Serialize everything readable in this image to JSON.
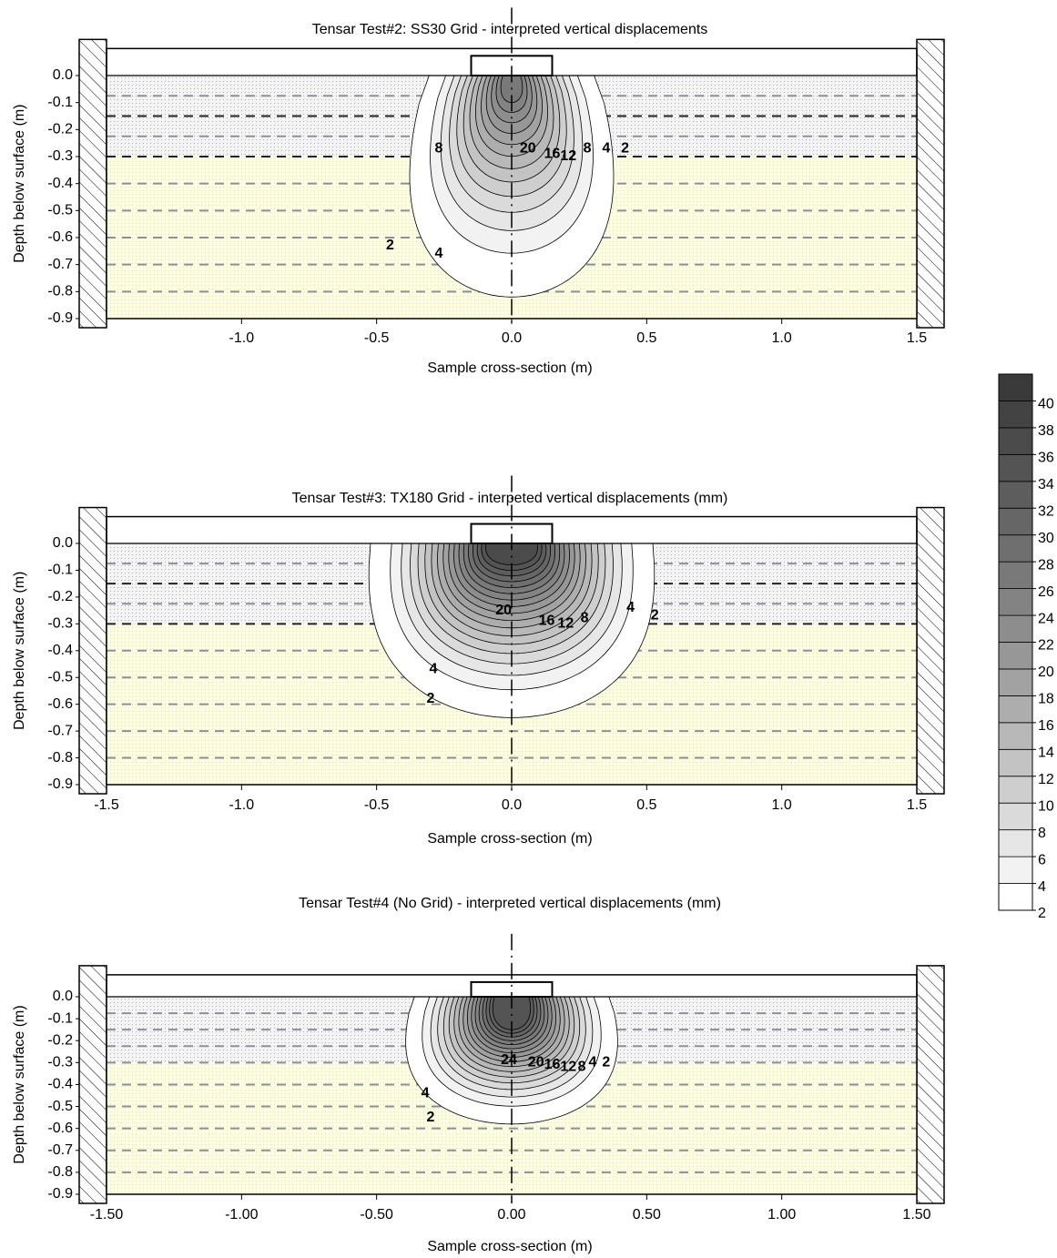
{
  "chart_data": [
    {
      "type": "contour",
      "title": "Tensar Test#2: SS30 Grid - interpreted vertical displacements",
      "xlabel": "Sample cross-section (m)",
      "ylabel": "Depth below surface (m)",
      "xlim": [
        -1.5,
        1.5
      ],
      "ylim": [
        -0.9,
        0.1
      ],
      "xticks": [
        {
          "value": -1,
          "label": "-1.0"
        },
        -0.5,
        {
          "value": 0,
          "label": "0.0"
        },
        0.5,
        {
          "value": 1,
          "label": "1.0"
        },
        1.5
      ],
      "yticks": [
        {
          "value": 0,
          "label": "0.0"
        },
        -0.1,
        -0.2,
        -0.3,
        -0.4,
        -0.5,
        -0.6,
        -0.7,
        -0.8,
        -0.9
      ],
      "contour_levels": [
        2,
        4,
        6,
        8,
        10,
        12,
        14,
        16,
        18,
        20,
        22,
        24,
        26
      ],
      "contour_labels": [
        8,
        20,
        16,
        12,
        8,
        4,
        2,
        2,
        4
      ]
    },
    {
      "type": "contour",
      "title": "Tensar Test#3: TX180 Grid - interpeted vertical displacements (mm)",
      "xlabel": "Sample cross-section (m)",
      "ylabel": "Depth below surface (m)",
      "xlim": [
        -1.5,
        1.5
      ],
      "ylim": [
        -0.9,
        0.1
      ],
      "xticks": [
        -1.5,
        {
          "value": -1,
          "label": "-1.0"
        },
        -0.5,
        {
          "value": 0,
          "label": "0.0"
        },
        0.5,
        {
          "value": 1,
          "label": "1.0"
        },
        1.5
      ],
      "yticks": [
        {
          "value": 0,
          "label": "0.0"
        },
        -0.1,
        -0.2,
        -0.3,
        -0.4,
        -0.5,
        -0.6,
        -0.7,
        -0.8,
        -0.9
      ],
      "contour_levels": [
        2,
        4,
        6,
        8,
        10,
        12,
        14,
        16,
        18,
        20,
        22,
        24,
        26,
        28,
        30,
        32,
        34,
        36
      ],
      "contour_labels": [
        20,
        16,
        12,
        8,
        4,
        2,
        4,
        2
      ]
    },
    {
      "type": "contour",
      "title": "Tensar Test#4 (No Grid) - interpreted vertical displacements (mm)",
      "xlabel": "Sample cross-section (m)",
      "ylabel": "Depth below surface (m)",
      "xlim": [
        -1.5,
        1.5
      ],
      "ylim": [
        -0.9,
        0.1
      ],
      "xticks": [
        {
          "value": -1.5,
          "label": "-1.50"
        },
        {
          "value": -1,
          "label": "-1.00"
        },
        {
          "value": -0.5,
          "label": "-0.50"
        },
        {
          "value": 0,
          "label": "0.00"
        },
        {
          "value": 0.5,
          "label": "0.50"
        },
        {
          "value": 1,
          "label": "1.00"
        },
        {
          "value": 1.5,
          "label": "1.50"
        }
      ],
      "yticks": [
        {
          "value": 0,
          "label": "0.0"
        },
        -0.1,
        -0.2,
        -0.3,
        -0.4,
        -0.5,
        -0.6,
        -0.7,
        -0.8,
        -0.9
      ],
      "contour_levels": [
        2,
        4,
        6,
        8,
        10,
        12,
        14,
        16,
        18,
        20,
        22,
        24,
        26,
        28,
        30,
        32,
        34
      ],
      "contour_labels": [
        24,
        20,
        16,
        12,
        8,
        4,
        2,
        4,
        2
      ]
    },
    {
      "type": "colorbar",
      "bins": [
        2,
        4,
        6,
        8,
        10,
        12,
        14,
        16,
        18,
        20,
        22,
        24,
        26,
        28,
        30,
        32,
        34,
        36,
        38,
        40,
        42
      ],
      "colors": [
        "#ffffff",
        "#f2f2f2",
        "#e6e6e6",
        "#dadada",
        "#cecece",
        "#c3c3c3",
        "#b8b8b8",
        "#adadad",
        "#a2a2a2",
        "#979797",
        "#8d8d8d",
        "#838383",
        "#797979",
        "#6f6f6f",
        "#666666",
        "#5d5d5d",
        "#545454",
        "#4b4b4b",
        "#434343",
        "#3a3a3a"
      ],
      "ylim": [
        2,
        42
      ],
      "yticks": [
        2,
        4,
        6,
        8,
        10,
        12,
        14,
        16,
        18,
        20,
        22,
        24,
        26,
        28,
        30,
        32,
        34,
        36,
        38,
        40
      ]
    }
  ]
}
